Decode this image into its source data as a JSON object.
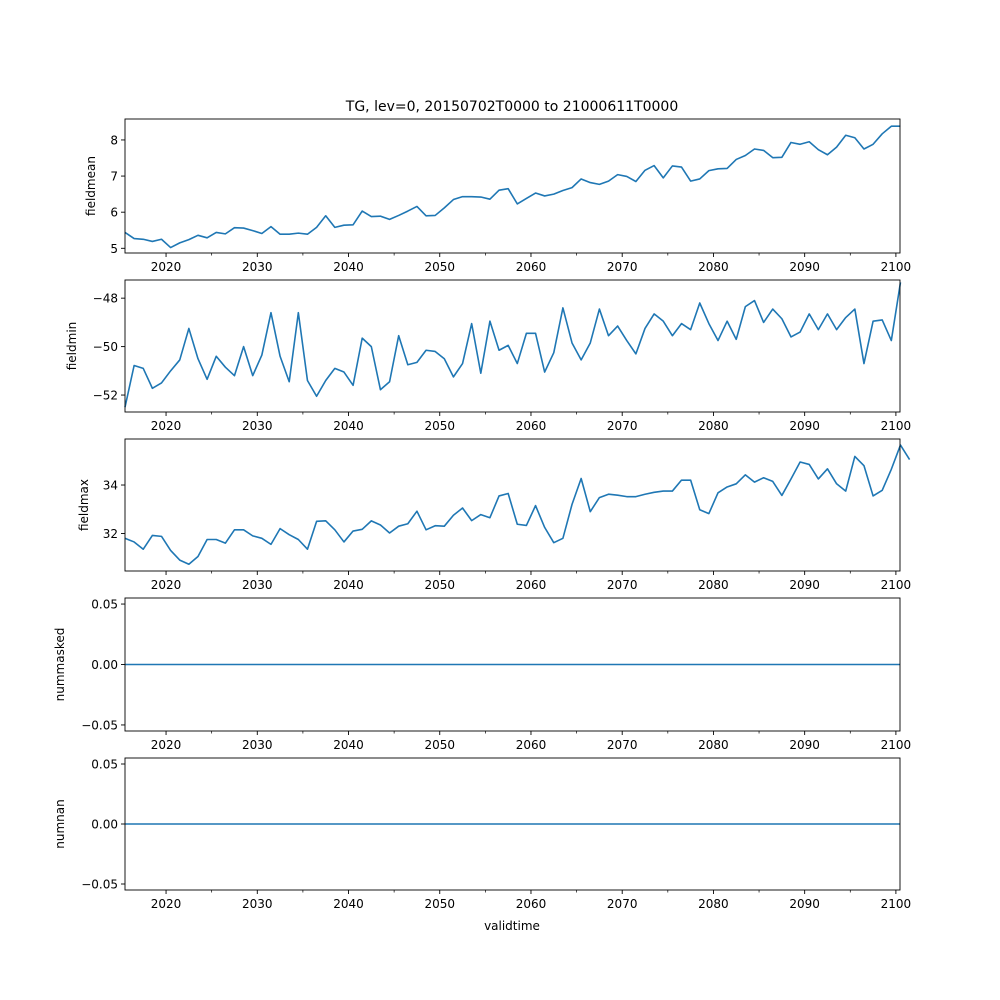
{
  "figure": {
    "title": "TG, lev=0, 20150702T0000 to 21000611T0000",
    "xlabel": "validtime"
  },
  "chart_data": [
    {
      "type": "line",
      "ylabel": "fieldmean",
      "xlim": [
        2015.5,
        2100.45
      ],
      "ylim": [
        4.87,
        8.58
      ],
      "yticks": [
        5,
        6,
        7,
        8
      ],
      "ytick_labels": [
        "5",
        "6",
        "7",
        "8"
      ],
      "xticks": [
        2020,
        2030,
        2040,
        2050,
        2060,
        2070,
        2080,
        2090,
        2100
      ],
      "xtick_labels": [
        "2020",
        "2030",
        "2040",
        "2050",
        "2060",
        "2070",
        "2080",
        "2090",
        "2100"
      ],
      "line_color": "#1f77b4",
      "x_start": 2015.5,
      "x_step": 1,
      "values": [
        5.44,
        5.27,
        5.25,
        5.19,
        5.25,
        5.02,
        5.15,
        5.24,
        5.36,
        5.29,
        5.44,
        5.4,
        5.57,
        5.56,
        5.49,
        5.41,
        5.6,
        5.39,
        5.39,
        5.42,
        5.39,
        5.58,
        5.9,
        5.58,
        5.64,
        5.65,
        6.03,
        5.88,
        5.89,
        5.8,
        5.91,
        6.03,
        6.16,
        5.9,
        5.91,
        6.12,
        6.35,
        6.43,
        6.43,
        6.42,
        6.36,
        6.61,
        6.65,
        6.23,
        6.38,
        6.53,
        6.45,
        6.5,
        6.6,
        6.68,
        6.92,
        6.82,
        6.77,
        6.86,
        7.04,
        6.99,
        6.85,
        7.16,
        7.29,
        6.95,
        7.28,
        7.25,
        6.86,
        6.92,
        7.15,
        7.2,
        7.21,
        7.46,
        7.57,
        7.75,
        7.71,
        7.51,
        7.52,
        7.93,
        7.88,
        7.95,
        7.73,
        7.59,
        7.8,
        8.13,
        8.06,
        7.75,
        7.88,
        8.17,
        8.38,
        8.38
      ]
    },
    {
      "type": "line",
      "ylabel": "fieldmin",
      "xlim": [
        2015.5,
        2100.45
      ],
      "ylim": [
        -52.7,
        -47.25
      ],
      "yticks": [
        -52,
        -50,
        -48
      ],
      "ytick_labels": [
        "−52",
        "−50",
        "−48"
      ],
      "xticks": [
        2020,
        2030,
        2040,
        2050,
        2060,
        2070,
        2080,
        2090,
        2100
      ],
      "xtick_labels": [
        "2020",
        "2030",
        "2040",
        "2050",
        "2060",
        "2070",
        "2080",
        "2090",
        "2100"
      ],
      "line_color": "#1f77b4",
      "x_start": 2015.5,
      "x_step": 1,
      "values": [
        -52.5,
        -50.78,
        -50.9,
        -51.72,
        -51.5,
        -51.0,
        -50.55,
        -49.25,
        -50.5,
        -51.35,
        -50.4,
        -50.85,
        -51.2,
        -50.0,
        -51.2,
        -50.35,
        -48.6,
        -50.4,
        -51.45,
        -48.6,
        -51.4,
        -52.05,
        -51.4,
        -50.9,
        -51.05,
        -51.6,
        -49.65,
        -50.0,
        -51.78,
        -51.45,
        -49.55,
        -50.75,
        -50.65,
        -50.15,
        -50.2,
        -50.5,
        -51.25,
        -50.7,
        -49.05,
        -51.1,
        -48.95,
        -50.15,
        -49.95,
        -50.7,
        -49.45,
        -49.45,
        -51.05,
        -50.25,
        -48.4,
        -49.85,
        -50.55,
        -49.85,
        -48.45,
        -49.55,
        -49.15,
        -49.75,
        -50.3,
        -49.25,
        -48.65,
        -48.95,
        -49.55,
        -49.05,
        -49.3,
        -48.2,
        -49.05,
        -49.75,
        -48.95,
        -49.7,
        -48.35,
        -48.1,
        -49.0,
        -48.45,
        -48.85,
        -49.6,
        -49.4,
        -48.65,
        -49.3,
        -48.65,
        -49.3,
        -48.8,
        -48.45,
        -50.7,
        -48.95,
        -48.9,
        -49.75,
        -47.35
      ]
    },
    {
      "type": "line",
      "ylabel": "fieldmax",
      "xlim": [
        2015.5,
        2100.45
      ],
      "ylim": [
        30.45,
        35.9
      ],
      "yticks": [
        32,
        34
      ],
      "ytick_labels": [
        "32",
        "34"
      ],
      "xticks": [
        2020,
        2030,
        2040,
        2050,
        2060,
        2070,
        2080,
        2090,
        2100
      ],
      "xtick_labels": [
        "2020",
        "2030",
        "2040",
        "2050",
        "2060",
        "2070",
        "2080",
        "2090",
        "2100"
      ],
      "line_color": "#1f77b4",
      "x_start": 2015.5,
      "x_step": 1,
      "values": [
        31.8,
        31.65,
        31.35,
        31.92,
        31.88,
        31.3,
        30.9,
        30.73,
        31.05,
        31.75,
        31.75,
        31.6,
        32.15,
        32.15,
        31.9,
        31.8,
        31.55,
        32.2,
        31.95,
        31.75,
        31.35,
        32.5,
        32.52,
        32.15,
        31.65,
        32.1,
        32.17,
        32.52,
        32.35,
        32.02,
        32.3,
        32.4,
        32.92,
        32.15,
        32.32,
        32.3,
        32.75,
        33.05,
        32.53,
        32.78,
        32.65,
        33.55,
        33.65,
        32.38,
        32.33,
        33.15,
        32.25,
        31.62,
        31.8,
        33.2,
        34.27,
        32.9,
        33.48,
        33.62,
        33.58,
        33.52,
        33.52,
        33.62,
        33.7,
        33.75,
        33.75,
        34.2,
        34.2,
        32.98,
        32.82,
        33.68,
        33.92,
        34.05,
        34.42,
        34.12,
        34.3,
        34.15,
        33.57,
        34.25,
        34.95,
        34.85,
        34.25,
        34.67,
        34.05,
        33.75,
        35.18,
        34.8,
        33.55,
        33.78,
        34.65,
        35.65,
        35.05
      ]
    },
    {
      "type": "line",
      "ylabel": "nummasked",
      "xlim": [
        2015.5,
        2100.45
      ],
      "ylim": [
        -0.055,
        0.055
      ],
      "yticks": [
        -0.05,
        0.0,
        0.05
      ],
      "ytick_labels": [
        "−0.05",
        "0.00",
        "0.05"
      ],
      "xticks": [
        2020,
        2030,
        2040,
        2050,
        2060,
        2070,
        2080,
        2090,
        2100
      ],
      "xtick_labels": [
        "2020",
        "2030",
        "2040",
        "2050",
        "2060",
        "2070",
        "2080",
        "2090",
        "2100"
      ],
      "line_color": "#1f77b4",
      "x": [
        2015.5,
        2100.45
      ],
      "values": [
        0,
        0
      ]
    },
    {
      "type": "line",
      "ylabel": "numnan",
      "xlim": [
        2015.5,
        2100.45
      ],
      "ylim": [
        -0.055,
        0.055
      ],
      "yticks": [
        -0.05,
        0.0,
        0.05
      ],
      "ytick_labels": [
        "−0.05",
        "0.00",
        "0.05"
      ],
      "xticks": [
        2020,
        2030,
        2040,
        2050,
        2060,
        2070,
        2080,
        2090,
        2100
      ],
      "xtick_labels": [
        "2020",
        "2030",
        "2040",
        "2050",
        "2060",
        "2070",
        "2080",
        "2090",
        "2100"
      ],
      "line_color": "#1f77b4",
      "x": [
        2015.5,
        2100.45
      ],
      "values": [
        0,
        0
      ]
    }
  ]
}
